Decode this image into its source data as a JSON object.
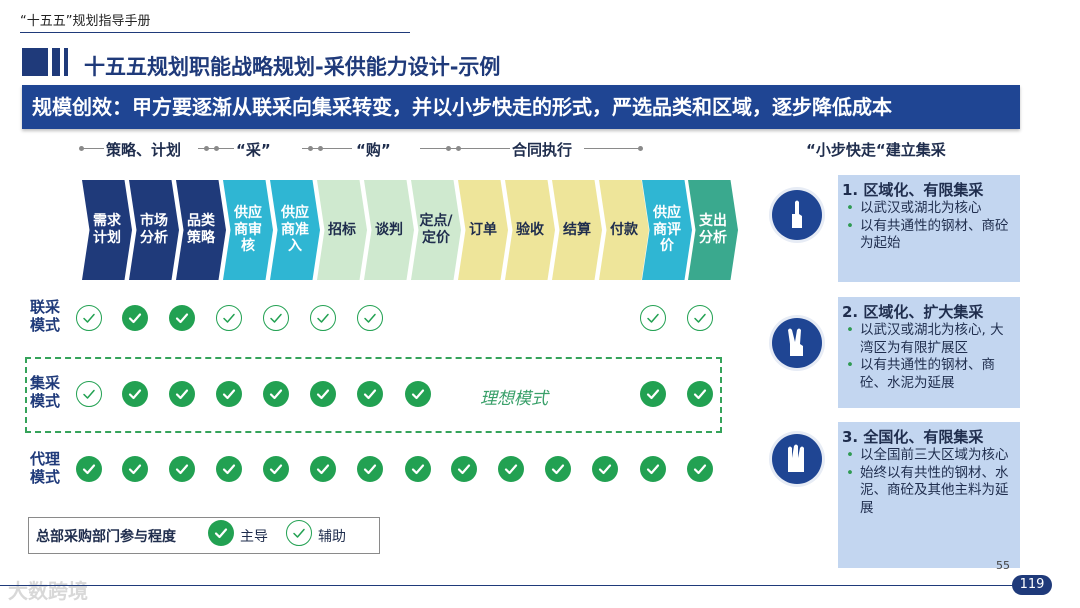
{
  "header": {
    "guide_title": "“十五五”规划指导手册",
    "main_title": "十五五规划职能战略规划-采供能力设计-示例",
    "banner": "规模创效：甲方要逐渐从联采向集采转变，并以小步快走的形式，严选品类和区域，逐步降低成本"
  },
  "phases": [
    "策略、计划",
    "“采”",
    "“购”",
    "合同执行"
  ],
  "strategy_title": "“小步快走“建立集采",
  "steps": [
    {
      "label": "需求计划",
      "color": "navy"
    },
    {
      "label": "市场分析",
      "color": "navy"
    },
    {
      "label": "品类策略",
      "color": "navy"
    },
    {
      "label": "供应商审核",
      "color": "cyan"
    },
    {
      "label": "供应商准入",
      "color": "cyan"
    },
    {
      "label": "招标",
      "color": "green"
    },
    {
      "label": "谈判",
      "color": "green"
    },
    {
      "label": "定点/定价",
      "color": "green"
    },
    {
      "label": "订单",
      "color": "yellow"
    },
    {
      "label": "验收",
      "color": "yellow"
    },
    {
      "label": "结算",
      "color": "yellow"
    },
    {
      "label": "付款",
      "color": "yellow"
    },
    {
      "label": "供应商评价",
      "color": "cyan"
    },
    {
      "label": "支出分析",
      "color": "teal"
    }
  ],
  "modes": [
    {
      "label": "联采模式",
      "marks": [
        "aux",
        "full",
        "full",
        "aux",
        "aux",
        "aux",
        "aux",
        "",
        "",
        "",
        "",
        "",
        "aux",
        "aux"
      ]
    },
    {
      "label": "集采模式",
      "marks": [
        "aux",
        "full",
        "full",
        "full",
        "full",
        "full",
        "full",
        "full",
        "",
        "",
        "",
        "",
        "full",
        "full"
      ]
    },
    {
      "label": "代理模式",
      "marks": [
        "full",
        "full",
        "full",
        "full",
        "full",
        "full",
        "full",
        "full",
        "full",
        "full",
        "full",
        "full",
        "full",
        "full"
      ]
    }
  ],
  "ideal_label": "理想模式",
  "legend": {
    "title": "总部采购部门参与程度",
    "lead": "主导",
    "assist": "辅助"
  },
  "cards": [
    {
      "title": "1. 区域化、有限集采",
      "items": [
        "以武汉或湖北为核心",
        "以有共通性的钢材、商砼为起始"
      ]
    },
    {
      "title": "2. 区域化、扩大集采",
      "items": [
        "以武汉或湖北为核心, 大湾区为有限扩展区",
        "以有共通性的钢材、商砼、水泥为延展"
      ]
    },
    {
      "title": "3. 全国化、有限集采",
      "items": [
        "以全国前三大区域为核心",
        "始终以有共性的钢材、水泥、商砼及其他主料为延展"
      ]
    }
  ],
  "footer": {
    "small_number": "55",
    "page_number": "119",
    "watermark": "大数跨境"
  },
  "colors": {
    "navy": "#1f3a7a",
    "banner": "#1f4593",
    "cyan": "#2fb6d3",
    "green": "#cfe9cf",
    "yellow": "#eee59a",
    "teal": "#3aa98e",
    "check": "#22a152",
    "card": "#c3d6f0"
  }
}
